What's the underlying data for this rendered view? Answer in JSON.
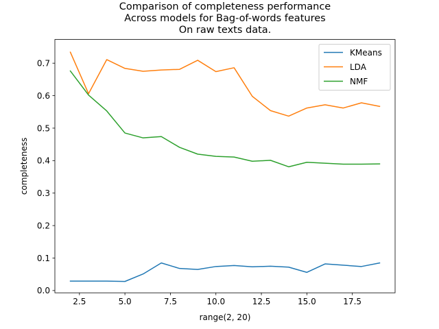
{
  "chart_data": {
    "type": "line",
    "title": [
      "Comparison of completeness performance",
      "Across models for Bag-of-words features",
      "On raw texts data."
    ],
    "xlabel": "range(2, 20)",
    "ylabel": "completeness",
    "xlim": [
      1.15,
      19.85
    ],
    "ylim": [
      -0.007,
      0.773
    ],
    "xticks": [
      2.5,
      5.0,
      7.5,
      10.0,
      12.5,
      15.0,
      17.5
    ],
    "xtick_labels": [
      "2.5",
      "5.0",
      "7.5",
      "10.0",
      "12.5",
      "15.0",
      "17.5"
    ],
    "yticks": [
      0.0,
      0.1,
      0.2,
      0.3,
      0.4,
      0.5,
      0.6,
      0.7
    ],
    "ytick_labels": [
      "0.0",
      "0.1",
      "0.2",
      "0.3",
      "0.4",
      "0.5",
      "0.6",
      "0.7"
    ],
    "grid": false,
    "legend_position": "top-right",
    "x": [
      2,
      3,
      4,
      5,
      6,
      7,
      8,
      9,
      10,
      11,
      12,
      13,
      14,
      15,
      16,
      17,
      18,
      19
    ],
    "series": [
      {
        "name": "KMeans",
        "color": "#1f77b4",
        "values": [
          0.029,
          0.029,
          0.029,
          0.028,
          0.051,
          0.085,
          0.068,
          0.065,
          0.074,
          0.077,
          0.073,
          0.075,
          0.072,
          0.056,
          0.082,
          0.078,
          0.074,
          0.085
        ]
      },
      {
        "name": "LDA",
        "color": "#ff7f0e",
        "values": [
          0.734,
          0.606,
          0.711,
          0.684,
          0.675,
          0.679,
          0.681,
          0.709,
          0.674,
          0.686,
          0.598,
          0.554,
          0.537,
          0.562,
          0.572,
          0.562,
          0.578,
          0.567
        ]
      },
      {
        "name": "NMF",
        "color": "#2ca02c",
        "values": [
          0.676,
          0.602,
          0.553,
          0.485,
          0.47,
          0.474,
          0.441,
          0.42,
          0.413,
          0.411,
          0.398,
          0.401,
          0.381,
          0.395,
          0.392,
          0.389,
          0.389,
          0.39
        ]
      }
    ]
  }
}
